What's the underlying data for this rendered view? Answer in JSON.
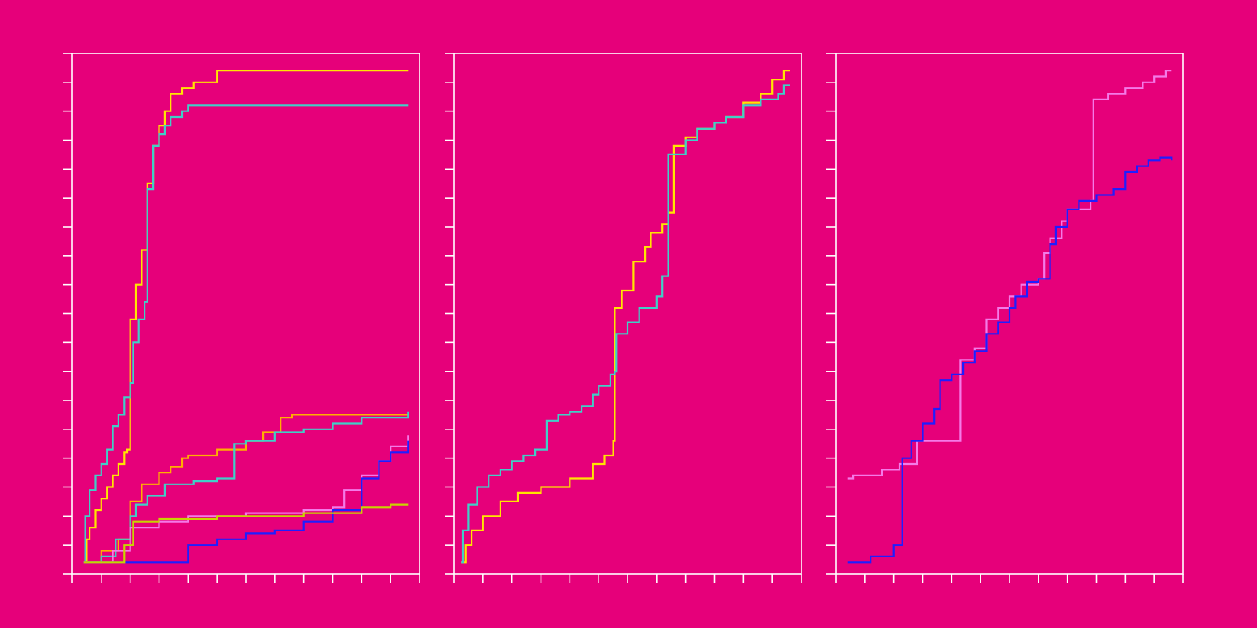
{
  "colors": {
    "background": "#E6007A",
    "axis": "#FFFFFF",
    "yellow": "#FFE600",
    "cyan": "#3FD0C8",
    "orange": "#FFB000",
    "pink": "#F47AE8",
    "blue": "#1E1EFF",
    "lime": "#C8D400"
  },
  "chart_data": [
    {
      "type": "line",
      "step": true,
      "title": "",
      "xlabel": "",
      "ylabel": "",
      "xlim": [
        0,
        12
      ],
      "ylim": [
        0,
        18
      ],
      "grid": false,
      "xticks": [
        0,
        1,
        2,
        3,
        4,
        5,
        6,
        7,
        8,
        9,
        10,
        11,
        12
      ],
      "yticks": [
        0,
        1,
        2,
        3,
        4,
        5,
        6,
        7,
        8,
        9,
        10,
        11,
        12,
        13,
        14,
        15,
        16,
        17,
        18
      ],
      "series": [
        {
          "color": "yellow",
          "points": [
            [
              0.4,
              0.4
            ],
            [
              0.5,
              1.2
            ],
            [
              0.6,
              1.6
            ],
            [
              0.8,
              2.2
            ],
            [
              1.0,
              2.6
            ],
            [
              1.2,
              3.0
            ],
            [
              1.4,
              3.4
            ],
            [
              1.6,
              3.8
            ],
            [
              1.8,
              4.2
            ],
            [
              1.9,
              4.3
            ],
            [
              2.0,
              8.8
            ],
            [
              2.2,
              10.0
            ],
            [
              2.4,
              11.2
            ],
            [
              2.6,
              13.5
            ],
            [
              2.8,
              14.8
            ],
            [
              3.0,
              15.5
            ],
            [
              3.2,
              16.0
            ],
            [
              3.4,
              16.6
            ],
            [
              3.8,
              16.8
            ],
            [
              4.2,
              17.0
            ],
            [
              5.0,
              17.4
            ],
            [
              11.6,
              17.4
            ]
          ]
        },
        {
          "color": "cyan",
          "points": [
            [
              0.4,
              0.4
            ],
            [
              0.45,
              2.0
            ],
            [
              0.6,
              2.9
            ],
            [
              0.8,
              3.4
            ],
            [
              1.0,
              3.8
            ],
            [
              1.2,
              4.3
            ],
            [
              1.4,
              5.1
            ],
            [
              1.6,
              5.5
            ],
            [
              1.8,
              6.1
            ],
            [
              2.0,
              6.6
            ],
            [
              2.1,
              8.0
            ],
            [
              2.3,
              8.8
            ],
            [
              2.5,
              9.4
            ],
            [
              2.6,
              13.3
            ],
            [
              2.8,
              14.8
            ],
            [
              3.0,
              15.2
            ],
            [
              3.2,
              15.5
            ],
            [
              3.4,
              15.8
            ],
            [
              3.8,
              16.0
            ],
            [
              4.0,
              16.2
            ],
            [
              11.6,
              16.2
            ]
          ]
        },
        {
          "color": "orange",
          "points": [
            [
              0.4,
              0.4
            ],
            [
              1.0,
              0.8
            ],
            [
              1.6,
              1.2
            ],
            [
              2.0,
              2.5
            ],
            [
              2.4,
              3.1
            ],
            [
              3.0,
              3.5
            ],
            [
              3.4,
              3.7
            ],
            [
              3.8,
              4.0
            ],
            [
              4.0,
              4.1
            ],
            [
              5.0,
              4.3
            ],
            [
              6.0,
              4.6
            ],
            [
              6.6,
              4.9
            ],
            [
              7.2,
              5.4
            ],
            [
              7.6,
              5.5
            ],
            [
              11.6,
              5.5
            ]
          ]
        },
        {
          "color": "cyan",
          "points": [
            [
              0.4,
              0.4
            ],
            [
              1.0,
              0.6
            ],
            [
              1.5,
              1.2
            ],
            [
              2.0,
              2.0
            ],
            [
              2.2,
              2.4
            ],
            [
              2.6,
              2.7
            ],
            [
              3.2,
              3.1
            ],
            [
              4.2,
              3.2
            ],
            [
              5.0,
              3.3
            ],
            [
              5.6,
              4.5
            ],
            [
              6.0,
              4.6
            ],
            [
              7.0,
              4.9
            ],
            [
              8.0,
              5.0
            ],
            [
              9.0,
              5.2
            ],
            [
              10.0,
              5.4
            ],
            [
              11.6,
              5.6
            ]
          ]
        },
        {
          "color": "pink",
          "points": [
            [
              0.4,
              0.4
            ],
            [
              1.0,
              0.4
            ],
            [
              1.4,
              0.8
            ],
            [
              2.0,
              1.6
            ],
            [
              3.0,
              1.8
            ],
            [
              4.0,
              2.0
            ],
            [
              6.0,
              2.1
            ],
            [
              8.0,
              2.2
            ],
            [
              9.0,
              2.3
            ],
            [
              9.4,
              2.9
            ],
            [
              10.0,
              3.4
            ],
            [
              10.6,
              3.9
            ],
            [
              11.0,
              4.4
            ],
            [
              11.6,
              4.8
            ]
          ]
        },
        {
          "color": "blue",
          "points": [
            [
              0.4,
              0.4
            ],
            [
              3.0,
              0.4
            ],
            [
              4.0,
              1.0
            ],
            [
              5.0,
              1.2
            ],
            [
              6.0,
              1.4
            ],
            [
              7.0,
              1.5
            ],
            [
              8.0,
              1.8
            ],
            [
              9.0,
              2.2
            ],
            [
              10.0,
              3.3
            ],
            [
              10.6,
              3.9
            ],
            [
              11.0,
              4.2
            ],
            [
              11.6,
              4.6
            ]
          ]
        },
        {
          "color": "lime",
          "points": [
            [
              0.4,
              0.4
            ],
            [
              1.8,
              1.0
            ],
            [
              2.1,
              1.8
            ],
            [
              3.0,
              1.9
            ],
            [
              4.0,
              1.9
            ],
            [
              5.0,
              2.0
            ],
            [
              7.0,
              2.0
            ],
            [
              8.0,
              2.1
            ],
            [
              9.0,
              2.1
            ],
            [
              10.0,
              2.3
            ],
            [
              11.0,
              2.4
            ],
            [
              11.6,
              2.4
            ]
          ]
        }
      ]
    },
    {
      "type": "line",
      "step": true,
      "title": "",
      "xlabel": "",
      "ylabel": "",
      "xlim": [
        0,
        12
      ],
      "ylim": [
        0,
        18
      ],
      "grid": false,
      "xticks": [
        0,
        1,
        2,
        3,
        4,
        5,
        6,
        7,
        8,
        9,
        10,
        11,
        12
      ],
      "yticks": [
        0,
        1,
        2,
        3,
        4,
        5,
        6,
        7,
        8,
        9,
        10,
        11,
        12,
        13,
        14,
        15,
        16,
        17,
        18
      ],
      "series": [
        {
          "color": "yellow",
          "points": [
            [
              0.25,
              0.4
            ],
            [
              0.4,
              1.0
            ],
            [
              0.6,
              1.5
            ],
            [
              1.0,
              2.0
            ],
            [
              1.6,
              2.5
            ],
            [
              2.2,
              2.8
            ],
            [
              3.0,
              3.0
            ],
            [
              4.0,
              3.3
            ],
            [
              4.8,
              3.8
            ],
            [
              5.2,
              4.1
            ],
            [
              5.5,
              4.6
            ],
            [
              5.55,
              9.2
            ],
            [
              5.8,
              9.8
            ],
            [
              6.2,
              10.8
            ],
            [
              6.6,
              11.3
            ],
            [
              6.8,
              11.8
            ],
            [
              7.2,
              12.1
            ],
            [
              7.4,
              12.5
            ],
            [
              7.6,
              14.8
            ],
            [
              8.0,
              15.1
            ],
            [
              8.4,
              15.4
            ],
            [
              9.0,
              15.6
            ],
            [
              9.4,
              15.8
            ],
            [
              10.0,
              16.3
            ],
            [
              10.6,
              16.6
            ],
            [
              11.0,
              17.1
            ],
            [
              11.4,
              17.4
            ],
            [
              11.6,
              17.4
            ]
          ]
        },
        {
          "color": "cyan",
          "points": [
            [
              0.25,
              0.4
            ],
            [
              0.3,
              1.5
            ],
            [
              0.5,
              2.4
            ],
            [
              0.8,
              3.0
            ],
            [
              1.2,
              3.4
            ],
            [
              1.6,
              3.6
            ],
            [
              2.0,
              3.9
            ],
            [
              2.4,
              4.1
            ],
            [
              2.8,
              4.3
            ],
            [
              3.2,
              5.3
            ],
            [
              3.6,
              5.5
            ],
            [
              4.0,
              5.6
            ],
            [
              4.4,
              5.8
            ],
            [
              4.8,
              6.2
            ],
            [
              5.0,
              6.5
            ],
            [
              5.4,
              6.9
            ],
            [
              5.55,
              7.0
            ],
            [
              5.6,
              8.3
            ],
            [
              6.0,
              8.7
            ],
            [
              6.4,
              9.2
            ],
            [
              7.0,
              9.6
            ],
            [
              7.2,
              10.3
            ],
            [
              7.4,
              14.5
            ],
            [
              8.0,
              15.0
            ],
            [
              8.4,
              15.4
            ],
            [
              9.0,
              15.6
            ],
            [
              9.4,
              15.8
            ],
            [
              10.0,
              16.2
            ],
            [
              10.6,
              16.4
            ],
            [
              11.2,
              16.6
            ],
            [
              11.4,
              16.9
            ],
            [
              11.6,
              16.9
            ]
          ]
        }
      ]
    },
    {
      "type": "line",
      "step": true,
      "title": "",
      "xlabel": "",
      "ylabel": "",
      "xlim": [
        0,
        12
      ],
      "ylim": [
        0,
        18
      ],
      "grid": false,
      "xticks": [
        0,
        1,
        2,
        3,
        4,
        5,
        6,
        7,
        8,
        9,
        10,
        11,
        12
      ],
      "yticks": [
        0,
        1,
        2,
        3,
        4,
        5,
        6,
        7,
        8,
        9,
        10,
        11,
        12,
        13,
        14,
        15,
        16,
        17,
        18
      ],
      "series": [
        {
          "color": "pink",
          "points": [
            [
              0.4,
              3.3
            ],
            [
              0.6,
              3.4
            ],
            [
              1.6,
              3.6
            ],
            [
              2.2,
              3.8
            ],
            [
              2.8,
              4.6
            ],
            [
              4.2,
              4.6
            ],
            [
              4.3,
              7.4
            ],
            [
              4.8,
              7.8
            ],
            [
              5.2,
              8.8
            ],
            [
              5.6,
              9.2
            ],
            [
              6.0,
              9.6
            ],
            [
              6.4,
              10.0
            ],
            [
              7.0,
              10.2
            ],
            [
              7.2,
              11.1
            ],
            [
              7.4,
              11.6
            ],
            [
              7.8,
              12.2
            ],
            [
              8.0,
              12.6
            ],
            [
              8.8,
              12.9
            ],
            [
              8.9,
              16.4
            ],
            [
              9.4,
              16.6
            ],
            [
              10.0,
              16.8
            ],
            [
              10.6,
              17.0
            ],
            [
              11.0,
              17.2
            ],
            [
              11.4,
              17.4
            ],
            [
              11.6,
              17.4
            ]
          ]
        },
        {
          "color": "blue",
          "points": [
            [
              0.4,
              0.4
            ],
            [
              1.2,
              0.6
            ],
            [
              2.0,
              1.0
            ],
            [
              2.3,
              4.0
            ],
            [
              2.6,
              4.6
            ],
            [
              3.0,
              5.2
            ],
            [
              3.4,
              5.7
            ],
            [
              3.6,
              6.7
            ],
            [
              4.0,
              6.9
            ],
            [
              4.4,
              7.3
            ],
            [
              4.8,
              7.7
            ],
            [
              5.2,
              8.3
            ],
            [
              5.6,
              8.7
            ],
            [
              6.0,
              9.2
            ],
            [
              6.2,
              9.6
            ],
            [
              6.6,
              10.1
            ],
            [
              7.0,
              10.2
            ],
            [
              7.4,
              11.4
            ],
            [
              7.6,
              12.0
            ],
            [
              8.0,
              12.6
            ],
            [
              8.4,
              12.9
            ],
            [
              9.0,
              13.1
            ],
            [
              9.6,
              13.3
            ],
            [
              10.0,
              13.9
            ],
            [
              10.4,
              14.1
            ],
            [
              10.8,
              14.3
            ],
            [
              11.2,
              14.4
            ],
            [
              11.6,
              14.3
            ]
          ]
        }
      ]
    }
  ]
}
